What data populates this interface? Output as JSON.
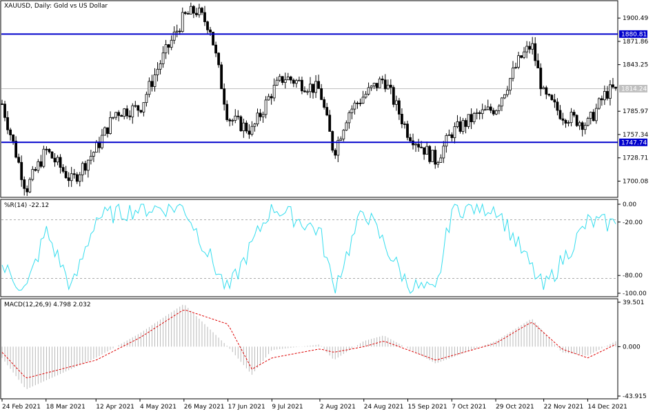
{
  "main": {
    "title": "XAUUSD, Daily:  Gold vs US Dollar",
    "price_ticks": [
      "1900.49",
      "1871.86",
      "1843.25",
      "1785.97",
      "1757.34",
      "1728.71",
      "1700.08"
    ],
    "support_line": {
      "value": 1747.74,
      "label": "1747.74",
      "color": "#0000cc"
    },
    "resistance_line": {
      "value": 1880.81,
      "label": "1880.81",
      "color": "#0000cc"
    },
    "current_price": {
      "value": 1814.24,
      "label": "1814.24",
      "color": "#c0c0c0"
    }
  },
  "wpr": {
    "title": "%R(14) -22.12",
    "ticks": [
      "0.00",
      "-20.00",
      "-80.00",
      "-100.00"
    ],
    "line_color": "#33ddee"
  },
  "macd": {
    "title": "MACD(12,26,9) 4.798 2.032",
    "ticks": [
      "39.501",
      "0.000",
      "-43.915"
    ],
    "histogram_color": "#b8b8b8",
    "signal_color": "#dd0000"
  },
  "x_labels": [
    "24 Feb 2021",
    "18 Mar 2021",
    "12 Apr 2021",
    "4 May 2021",
    "26 May 2021",
    "17 Jun 2021",
    "9 Jul 2021",
    "2 Aug 2021",
    "24 Aug 2021",
    "15 Sep 2021",
    "7 Oct 2021",
    "29 Oct 2021",
    "22 Nov 2021",
    "14 Dec 2021"
  ],
  "chart_data": {
    "type": "candlestick",
    "instrument": "XAUUSD",
    "timeframe": "Daily",
    "ylim": [
      1680,
      1925
    ],
    "key_close_points": [
      {
        "x": "24 Feb 2021",
        "close": 1795
      },
      {
        "x": "8 Mar 2021",
        "close": 1690
      },
      {
        "x": "18 Mar 2021",
        "close": 1738
      },
      {
        "x": "31 Mar 2021",
        "close": 1700
      },
      {
        "x": "12 Apr 2021",
        "close": 1740
      },
      {
        "x": "22 Apr 2021",
        "close": 1785
      },
      {
        "x": "4 May 2021",
        "close": 1790
      },
      {
        "x": "14 May 2021",
        "close": 1845
      },
      {
        "x": "26 May 2021",
        "close": 1902
      },
      {
        "x": "1 Jun 2021",
        "close": 1910
      },
      {
        "x": "8 Jun 2021",
        "close": 1890
      },
      {
        "x": "17 Jun 2021",
        "close": 1778
      },
      {
        "x": "29 Jun 2021",
        "close": 1762
      },
      {
        "x": "9 Jul 2021",
        "close": 1810
      },
      {
        "x": "15 Jul 2021",
        "close": 1828
      },
      {
        "x": "2 Aug 2021",
        "close": 1812
      },
      {
        "x": "9 Aug 2021",
        "close": 1735
      },
      {
        "x": "16 Aug 2021",
        "close": 1784
      },
      {
        "x": "24 Aug 2021",
        "close": 1805
      },
      {
        "x": "3 Sep 2021",
        "close": 1826
      },
      {
        "x": "15 Sep 2021",
        "close": 1760
      },
      {
        "x": "29 Sep 2021",
        "close": 1725
      },
      {
        "x": "7 Oct 2021",
        "close": 1760
      },
      {
        "x": "19 Oct 2021",
        "close": 1780
      },
      {
        "x": "29 Oct 2021",
        "close": 1790
      },
      {
        "x": "10 Nov 2021",
        "close": 1850
      },
      {
        "x": "16 Nov 2021",
        "close": 1868
      },
      {
        "x": "22 Nov 2021",
        "close": 1805
      },
      {
        "x": "1 Dec 2021",
        "close": 1782
      },
      {
        "x": "14 Dec 2021",
        "close": 1770
      },
      {
        "x": "23 Dec 2021",
        "close": 1808
      },
      {
        "x": "28 Dec 2021",
        "close": 1814.24
      }
    ],
    "williams_r_key_points": [
      {
        "x": "24 Feb 2021",
        "value": -70
      },
      {
        "x": "8 Mar 2021",
        "value": -97
      },
      {
        "x": "18 Mar 2021",
        "value": -30
      },
      {
        "x": "31 Mar 2021",
        "value": -95
      },
      {
        "x": "12 Apr 2021",
        "value": -15
      },
      {
        "x": "4 May 2021",
        "value": -5
      },
      {
        "x": "26 May 2021",
        "value": -3
      },
      {
        "x": "17 Jun 2021",
        "value": -98
      },
      {
        "x": "9 Jul 2021",
        "value": -2
      },
      {
        "x": "2 Aug 2021",
        "value": -30
      },
      {
        "x": "9 Aug 2021",
        "value": -95
      },
      {
        "x": "24 Aug 2021",
        "value": -5
      },
      {
        "x": "15 Sep 2021",
        "value": -90
      },
      {
        "x": "29 Sep 2021",
        "value": -100
      },
      {
        "x": "7 Oct 2021",
        "value": -5
      },
      {
        "x": "29 Oct 2021",
        "value": -3
      },
      {
        "x": "22 Nov 2021",
        "value": -95
      },
      {
        "x": "14 Dec 2021",
        "value": -20
      },
      {
        "x": "28 Dec 2021",
        "value": -22.12
      }
    ],
    "macd_key_points": [
      {
        "x": "24 Feb 2021",
        "macd": -10,
        "signal": -5
      },
      {
        "x": "8 Mar 2021",
        "macd": -38,
        "signal": -28
      },
      {
        "x": "12 Apr 2021",
        "macd": -10,
        "signal": -12
      },
      {
        "x": "4 May 2021",
        "macd": 12,
        "signal": 8
      },
      {
        "x": "26 May 2021",
        "macd": 38,
        "signal": 33
      },
      {
        "x": "17 Jun 2021",
        "macd": 0,
        "signal": 20
      },
      {
        "x": "29 Jun 2021",
        "macd": -25,
        "signal": -20
      },
      {
        "x": "9 Jul 2021",
        "macd": -3,
        "signal": -10
      },
      {
        "x": "2 Aug 2021",
        "macd": 2,
        "signal": -2
      },
      {
        "x": "9 Aug 2021",
        "macd": -12,
        "signal": -5
      },
      {
        "x": "24 Aug 2021",
        "macd": 5,
        "signal": 0
      },
      {
        "x": "3 Sep 2021",
        "macd": 10,
        "signal": 5
      },
      {
        "x": "29 Sep 2021",
        "macd": -15,
        "signal": -12
      },
      {
        "x": "29 Oct 2021",
        "macd": 5,
        "signal": 3
      },
      {
        "x": "16 Nov 2021",
        "macd": 25,
        "signal": 22
      },
      {
        "x": "1 Dec 2021",
        "macd": -5,
        "signal": -2
      },
      {
        "x": "14 Dec 2021",
        "macd": -8,
        "signal": -10
      },
      {
        "x": "28 Dec 2021",
        "macd": 4.798,
        "signal": 2.032
      }
    ]
  }
}
